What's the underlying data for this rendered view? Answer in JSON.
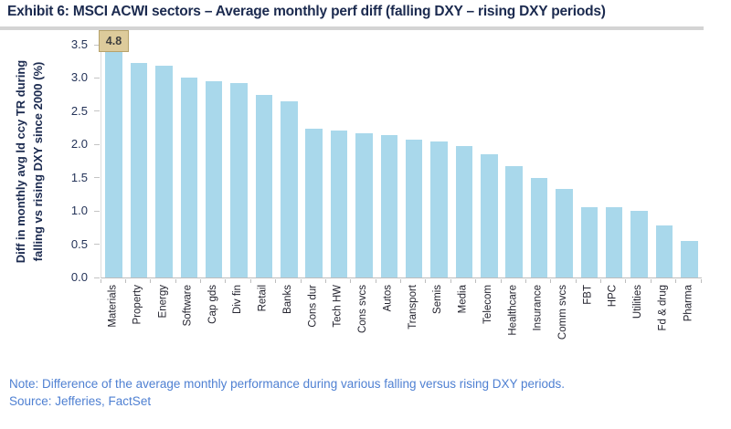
{
  "header": {
    "title": "Exhibit 6: MSCI ACWI sectors – Average monthly perf diff (falling DXY – rising DXY periods)"
  },
  "footer": {
    "note": "Note: Difference of the average monthly performance during various falling versus rising DXY periods.",
    "source": "Source: Jefferies, FactSet"
  },
  "colors": {
    "bar_fill": "#a9d8eb",
    "title_text": "#1b2a4f",
    "axis_text": "#243358",
    "category_text": "#23232e",
    "note_text": "#4f80d2",
    "axis_line": "#bdbdbd",
    "title_rule": "#d4d4d4",
    "callout_bg": "#ddcb9b",
    "callout_border": "#b6a26b"
  },
  "chart_data": {
    "type": "bar",
    "title": "Exhibit 6: MSCI ACWI sectors – Average monthly perf diff (falling DXY – rising DXY periods)",
    "ylabel_lines": [
      "Diff in monthly avg ld ccy TR during",
      "falling vs rising DXY since 2000 (%)"
    ],
    "ylim": [
      0,
      3.5
    ],
    "ytick_labels": [
      "0.0",
      "0.5",
      "1.0",
      "1.5",
      "2.0",
      "2.5",
      "3.0",
      "3.5"
    ],
    "grid": false,
    "legend": "none",
    "clip_note": "First bar exceeds axis max and is clipped at 3.5 with a data label",
    "bar_callout": {
      "category": "Materials",
      "text": "4.8",
      "value": 4.8
    },
    "categories": [
      "Materials",
      "Property",
      "Energy",
      "Software",
      "Cap gds",
      "Div fin",
      "Retail",
      "Banks",
      "Cons dur",
      "Tech HW",
      "Cons svcs",
      "Autos",
      "Transport",
      "Semis",
      "Media",
      "Telecom",
      "Healthcare",
      "Insurance",
      "Comm svcs",
      "FBT",
      "HPC",
      "Utilities",
      "Fd & drug",
      "Pharma"
    ],
    "values": [
      4.8,
      3.22,
      3.19,
      3.0,
      2.95,
      2.92,
      2.75,
      2.65,
      2.24,
      2.21,
      2.17,
      2.14,
      2.07,
      2.04,
      1.97,
      1.86,
      1.68,
      1.5,
      1.33,
      1.06,
      1.06,
      1.0,
      0.78,
      0.55
    ]
  }
}
